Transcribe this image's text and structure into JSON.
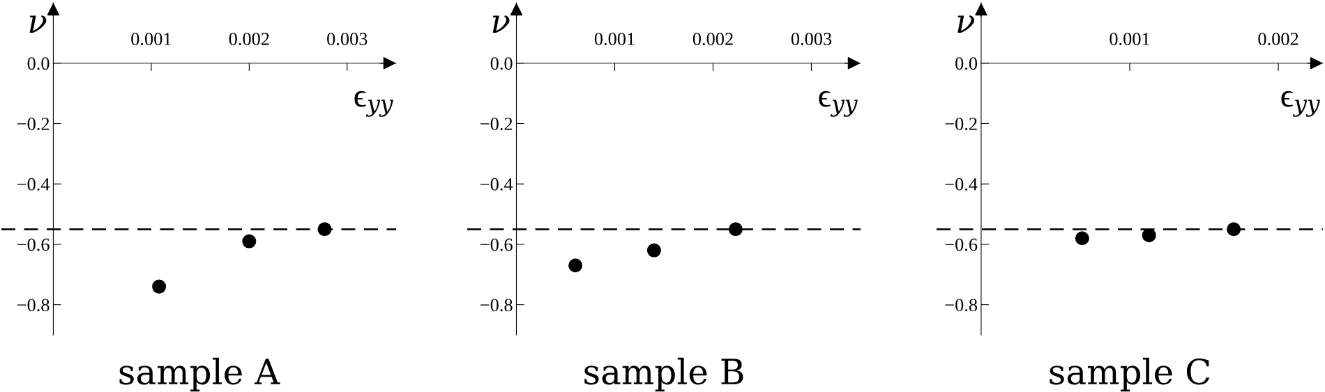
{
  "chart_data": [
    {
      "type": "scatter",
      "title": "sample A",
      "xlabel": "ϵ$_{yy}$",
      "ylabel": "ν",
      "xlim": [
        -0.00053,
        0.0035
      ],
      "ylim": [
        -0.9,
        0.2
      ],
      "xticks": [
        0.001,
        0.002,
        0.003
      ],
      "yticks": [
        {
          "value": 0.0,
          "label": "0.0"
        },
        {
          "value": -0.2,
          "label": "−0.2"
        },
        {
          "value": -0.4,
          "label": "−0.4"
        },
        {
          "value": -0.6,
          "label": "−0.6"
        },
        {
          "value": -0.8,
          "label": "−0.8"
        }
      ],
      "grid": false,
      "legend": false,
      "marker": "circle",
      "series": [
        {
          "color": "#000000",
          "x": [
            0.00108,
            0.002,
            0.00277
          ],
          "values": [
            -0.74,
            -0.59,
            -0.55
          ]
        }
      ],
      "ref_lines": [
        {
          "axis": "y",
          "value": -0.55,
          "color": "#000000",
          "line_style": "dashed"
        }
      ]
    },
    {
      "type": "scatter",
      "title": "sample B",
      "xlabel": "ϵ$_{yy}$",
      "ylabel": "ν",
      "xlim": [
        -0.0005,
        0.0035
      ],
      "ylim": [
        -0.9,
        0.2
      ],
      "xticks": [
        0.001,
        0.002,
        0.003
      ],
      "yticks": [
        {
          "value": 0.0,
          "label": "0.0"
        },
        {
          "value": -0.2,
          "label": "−0.2"
        },
        {
          "value": -0.4,
          "label": "−0.4"
        },
        {
          "value": -0.6,
          "label": "−0.6"
        },
        {
          "value": -0.8,
          "label": "−0.8"
        }
      ],
      "grid": false,
      "legend": false,
      "marker": "circle",
      "series": [
        {
          "color": "#000000",
          "x": [
            0.0006,
            0.0014,
            0.00223
          ],
          "values": [
            -0.67,
            -0.62,
            -0.55
          ]
        }
      ],
      "ref_lines": [
        {
          "axis": "y",
          "value": -0.55,
          "color": "#000000",
          "line_style": "dashed"
        }
      ]
    },
    {
      "type": "scatter",
      "title": "sample C",
      "xlabel": "ϵ$_{yy}$",
      "ylabel": "ν",
      "xlim": [
        -0.0003,
        0.0023
      ],
      "ylim": [
        -0.9,
        0.2
      ],
      "xticks": [
        0.001,
        0.002
      ],
      "yticks": [
        {
          "value": 0.0,
          "label": "0.0"
        },
        {
          "value": -0.2,
          "label": "−0.2"
        },
        {
          "value": -0.4,
          "label": "−0.4"
        },
        {
          "value": -0.6,
          "label": "−0.6"
        },
        {
          "value": -0.8,
          "label": "−0.8"
        }
      ],
      "grid": false,
      "legend": false,
      "marker": "circle",
      "series": [
        {
          "color": "#000000",
          "x": [
            0.00068,
            0.00113,
            0.0017
          ],
          "values": [
            -0.58,
            -0.57,
            -0.55
          ]
        }
      ],
      "ref_lines": [
        {
          "axis": "y",
          "value": -0.55,
          "color": "#000000",
          "line_style": "dashed"
        }
      ]
    }
  ]
}
